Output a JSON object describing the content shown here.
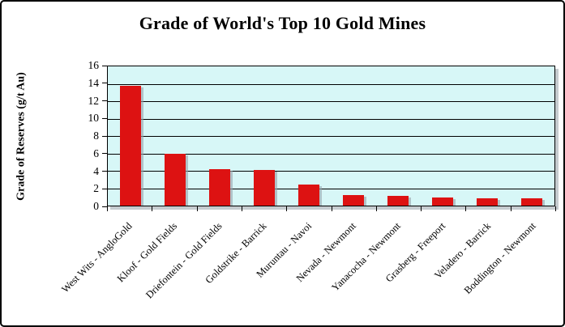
{
  "window": {
    "background_color": "#ffffff",
    "border_color": "#000000"
  },
  "chart_data": {
    "type": "bar",
    "title": "Grade of World's Top 10 Gold Mines",
    "xlabel": "",
    "ylabel": "Grade of Reserves (g/t Au)",
    "categories": [
      "West Wits - AngloGold",
      "Kloof - Gold Fields",
      "Driefontein - Gold Fields",
      "Goldstrike - Barrick",
      "Muruntau - Navoi",
      "Nevada - Newmont",
      "Yanacocha - Newmont",
      "Grasberg - Freeport",
      "Veladero - Barrick",
      "Boddington - Newmont"
    ],
    "values": [
      13.8,
      6.0,
      4.2,
      4.1,
      2.4,
      1.2,
      1.1,
      0.95,
      0.8,
      0.8
    ],
    "ylim": [
      0,
      16
    ],
    "ytick_step": 2,
    "grid": true,
    "legend": false,
    "bar_color": "#dd1212",
    "plot_bg_color": "#d7f7f7",
    "gridline_color": "#000000",
    "shadow_color": "rgba(150,160,168,0.6)"
  }
}
